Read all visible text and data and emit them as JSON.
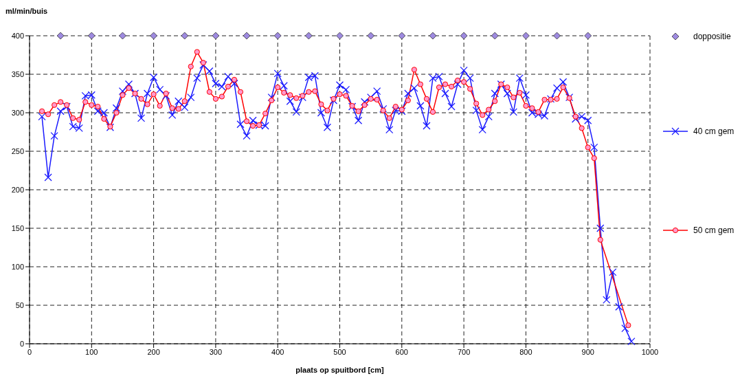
{
  "chart_data": {
    "type": "line",
    "xlabel": "plaats op spuitbord [cm]",
    "ylabel": "ml/min/buis",
    "xlim": [
      0,
      1000
    ],
    "xticks": [
      0,
      100,
      200,
      300,
      400,
      500,
      600,
      700,
      800,
      900,
      1000
    ],
    "ylim": [
      0,
      400
    ],
    "yticks": [
      0,
      50,
      100,
      150,
      200,
      250,
      300,
      350,
      400
    ],
    "grid": true,
    "line_style": "solid",
    "legend": "right",
    "series": [
      {
        "name": "doppositie",
        "type": "scatter",
        "marker": "diamond",
        "color": "#9e8ae0",
        "x": [
          50,
          100,
          150,
          200,
          250,
          300,
          350,
          400,
          450,
          500,
          550,
          600,
          650,
          700,
          750,
          800,
          850,
          900
        ],
        "values": [
          400,
          400,
          400,
          400,
          400,
          400,
          400,
          400,
          400,
          400,
          400,
          400,
          400,
          400,
          400,
          400,
          400,
          400
        ]
      },
      {
        "name": "40 cm gem",
        "marker": "cross",
        "color": "#1a1aff",
        "x": [
          20,
          30,
          40,
          50,
          60,
          70,
          80,
          90,
          100,
          110,
          120,
          130,
          140,
          150,
          160,
          170,
          180,
          190,
          200,
          210,
          220,
          230,
          240,
          250,
          260,
          270,
          280,
          290,
          300,
          310,
          320,
          330,
          340,
          350,
          360,
          370,
          380,
          390,
          400,
          410,
          420,
          430,
          440,
          450,
          460,
          470,
          480,
          490,
          500,
          510,
          520,
          530,
          540,
          550,
          560,
          570,
          580,
          590,
          600,
          610,
          620,
          630,
          640,
          650,
          660,
          670,
          680,
          690,
          700,
          710,
          720,
          730,
          740,
          750,
          760,
          770,
          780,
          790,
          800,
          810,
          820,
          830,
          840,
          850,
          860,
          870,
          880,
          890,
          900,
          910,
          920,
          930,
          940,
          950,
          960,
          970
        ],
        "values": [
          295,
          216,
          270,
          302,
          308,
          282,
          280,
          322,
          323,
          302,
          300,
          281,
          306,
          328,
          337,
          325,
          293,
          325,
          346,
          330,
          322,
          297,
          315,
          307,
          320,
          345,
          362,
          354,
          338,
          334,
          347,
          338,
          285,
          270,
          290,
          284,
          283,
          320,
          351,
          335,
          315,
          301,
          320,
          346,
          348,
          300,
          281,
          316,
          336,
          330,
          308,
          290,
          314,
          320,
          328,
          305,
          278,
          303,
          302,
          325,
          332,
          309,
          283,
          345,
          347,
          325,
          308,
          337,
          355,
          345,
          303,
          278,
          295,
          325,
          337,
          325,
          301,
          345,
          323,
          300,
          298,
          296,
          318,
          332,
          340,
          320,
          292,
          295,
          290,
          255,
          150,
          57,
          93,
          48,
          20,
          3
        ]
      },
      {
        "name": "50 cm gem",
        "marker": "circle",
        "color": "#ff0000",
        "x": [
          20,
          30,
          40,
          50,
          60,
          70,
          80,
          90,
          100,
          110,
          120,
          130,
          140,
          150,
          160,
          170,
          180,
          190,
          200,
          210,
          220,
          230,
          240,
          250,
          260,
          270,
          280,
          290,
          300,
          310,
          320,
          330,
          340,
          350,
          360,
          370,
          380,
          390,
          400,
          410,
          420,
          430,
          440,
          450,
          460,
          470,
          480,
          490,
          500,
          510,
          520,
          530,
          540,
          550,
          560,
          570,
          580,
          590,
          600,
          610,
          620,
          630,
          640,
          650,
          660,
          670,
          680,
          690,
          700,
          710,
          720,
          730,
          740,
          750,
          760,
          770,
          780,
          790,
          800,
          810,
          820,
          830,
          840,
          850,
          860,
          870,
          880,
          890,
          900,
          910,
          920,
          965
        ],
        "values": [
          302,
          298,
          310,
          314,
          310,
          293,
          291,
          314,
          310,
          308,
          292,
          282,
          300,
          323,
          332,
          325,
          318,
          311,
          324,
          309,
          325,
          306,
          305,
          315,
          360,
          379,
          365,
          327,
          318,
          321,
          334,
          343,
          327,
          289,
          283,
          284,
          299,
          316,
          333,
          326,
          323,
          319,
          322,
          327,
          328,
          311,
          303,
          318,
          324,
          322,
          309,
          302,
          310,
          318,
          317,
          303,
          293,
          308,
          304,
          316,
          356,
          337,
          318,
          301,
          333,
          337,
          334,
          342,
          340,
          331,
          312,
          297,
          304,
          315,
          337,
          333,
          320,
          326,
          309,
          306,
          301,
          317,
          317,
          318,
          333,
          319,
          295,
          280,
          255,
          241,
          135,
          24
        ]
      }
    ]
  }
}
